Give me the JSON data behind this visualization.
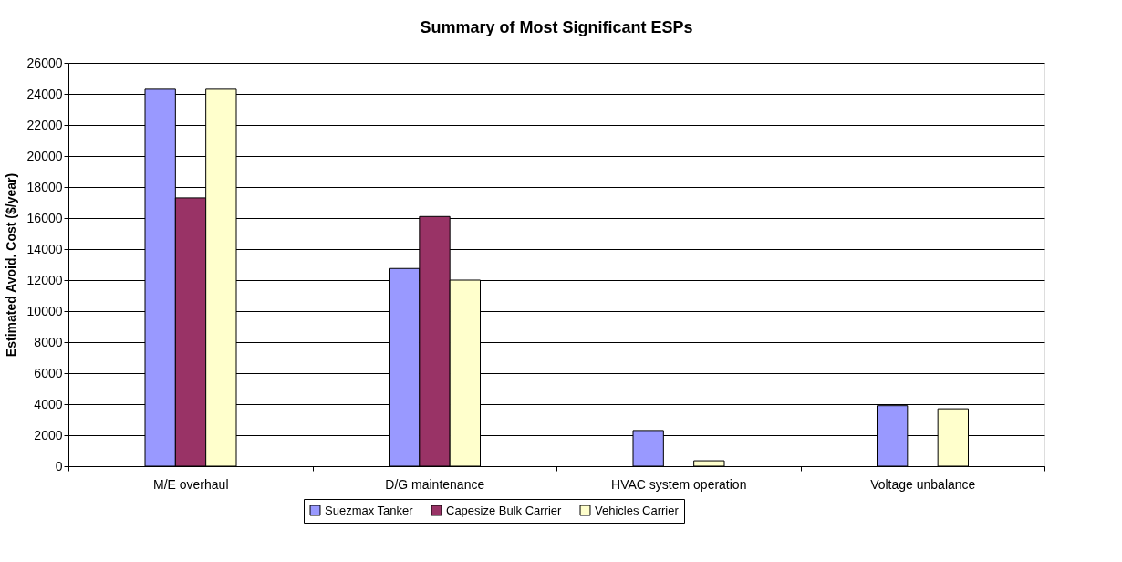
{
  "chart_data": {
    "type": "bar",
    "title": "Summary of Most Significant ESPs",
    "ylabel": "Estimated Avoid. Cost ($/year)",
    "categories": [
      "M/E overhaul",
      "D/G maintenance",
      "HVAC system operation",
      "Voltage unbalance"
    ],
    "series": [
      {
        "name": "Suezmax Tanker",
        "color": "#9999ff",
        "values": [
          24300,
          12750,
          2300,
          3900
        ]
      },
      {
        "name": "Capesize Bulk Carrier",
        "color": "#993366",
        "values": [
          17300,
          16100,
          null,
          null
        ]
      },
      {
        "name": "Vehicles Carrier",
        "color": "#ffffcc",
        "values": [
          24300,
          12000,
          350,
          3700
        ]
      }
    ],
    "ylim": [
      0,
      26000
    ],
    "yticks": [
      0,
      2000,
      4000,
      6000,
      8000,
      10000,
      12000,
      14000,
      16000,
      18000,
      20000,
      22000,
      24000,
      26000
    ],
    "grid": "y",
    "legend": "bottom"
  }
}
